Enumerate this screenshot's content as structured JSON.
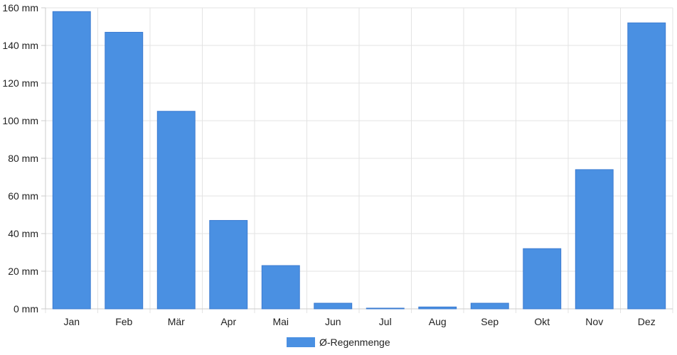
{
  "chart_data": {
    "type": "bar",
    "title": "",
    "xlabel": "",
    "ylabel": "",
    "categories": [
      "Jan",
      "Feb",
      "Mär",
      "Apr",
      "Mai",
      "Jun",
      "Jul",
      "Aug",
      "Sep",
      "Okt",
      "Nov",
      "Dez"
    ],
    "series": [
      {
        "name": "Ø-Regenmenge",
        "color": "#4a90e2",
        "values": [
          158,
          147,
          105,
          47,
          23,
          3,
          0.3,
          1,
          3,
          32,
          74,
          152
        ]
      }
    ],
    "ylim": [
      0,
      160
    ],
    "yticks": [
      0,
      20,
      40,
      60,
      80,
      100,
      120,
      140,
      160
    ],
    "y_unit": "mm",
    "grid": true,
    "legend_position": "bottom-center"
  }
}
